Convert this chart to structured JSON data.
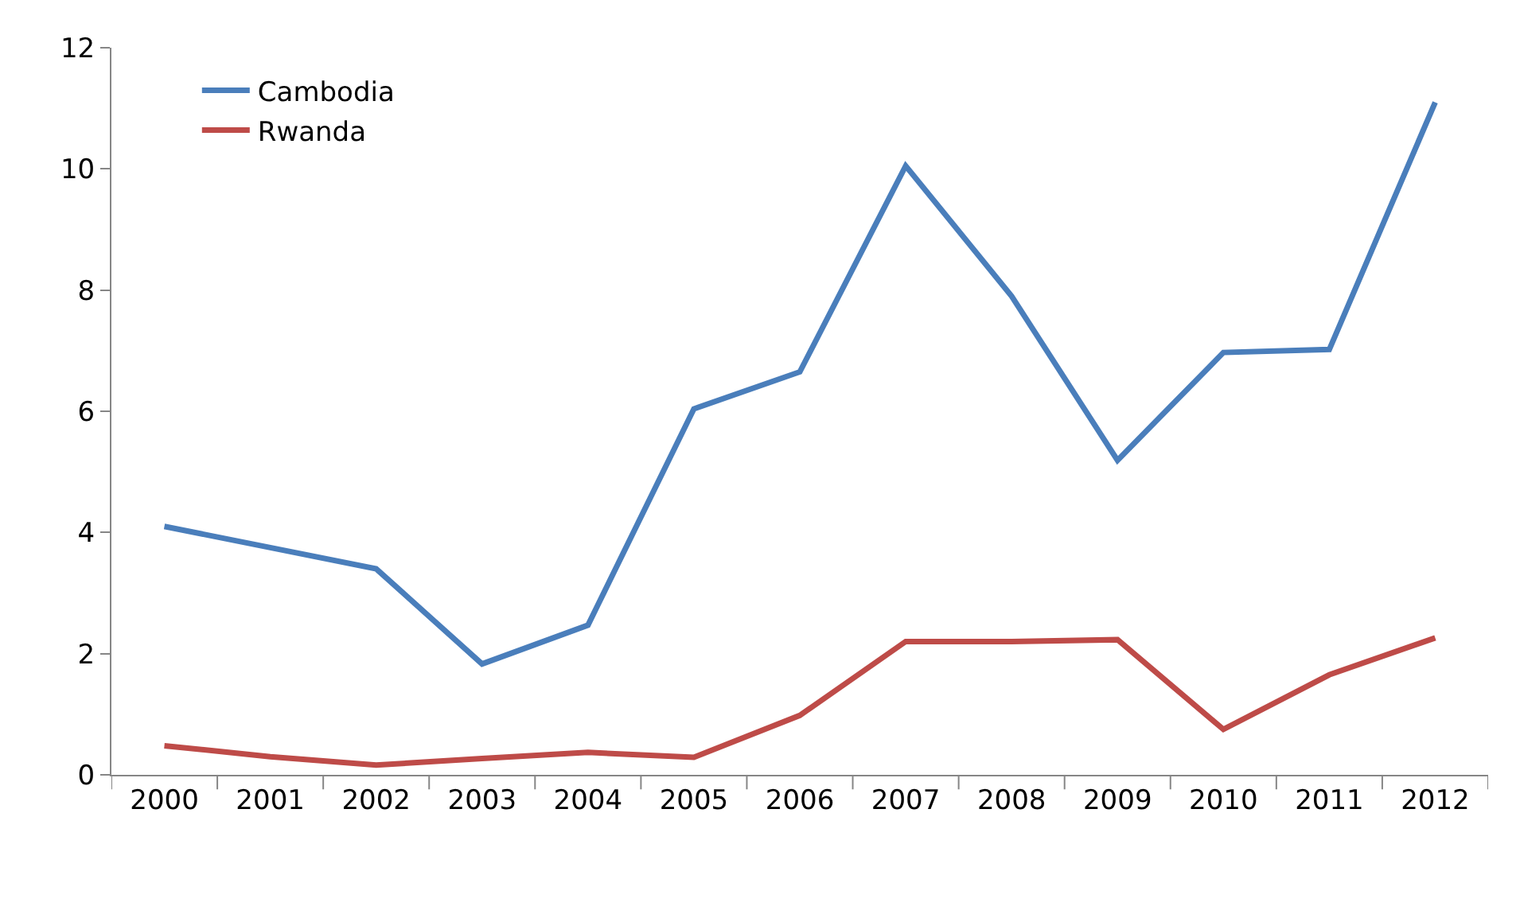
{
  "chart_data": {
    "type": "line",
    "categories": [
      "2000",
      "2001",
      "2002",
      "2003",
      "2004",
      "2005",
      "2006",
      "2007",
      "2008",
      "2009",
      "2010",
      "2011",
      "2012"
    ],
    "series": [
      {
        "name": "Cambodia",
        "color": "#4a7ebb",
        "values": [
          4.1,
          3.75,
          3.4,
          1.83,
          2.47,
          6.04,
          6.65,
          10.05,
          7.9,
          5.19,
          6.97,
          7.02,
          11.1
        ]
      },
      {
        "name": "Rwanda",
        "color": "#be4b48",
        "values": [
          0.48,
          0.3,
          0.16,
          0.27,
          0.37,
          0.29,
          0.98,
          2.2,
          2.2,
          2.23,
          0.75,
          1.65,
          2.26
        ]
      }
    ],
    "ylim": [
      0,
      12
    ],
    "yticks": [
      0,
      2,
      4,
      6,
      8,
      10,
      12
    ],
    "legend": "top left",
    "marker": "none",
    "line_style": "solid"
  }
}
